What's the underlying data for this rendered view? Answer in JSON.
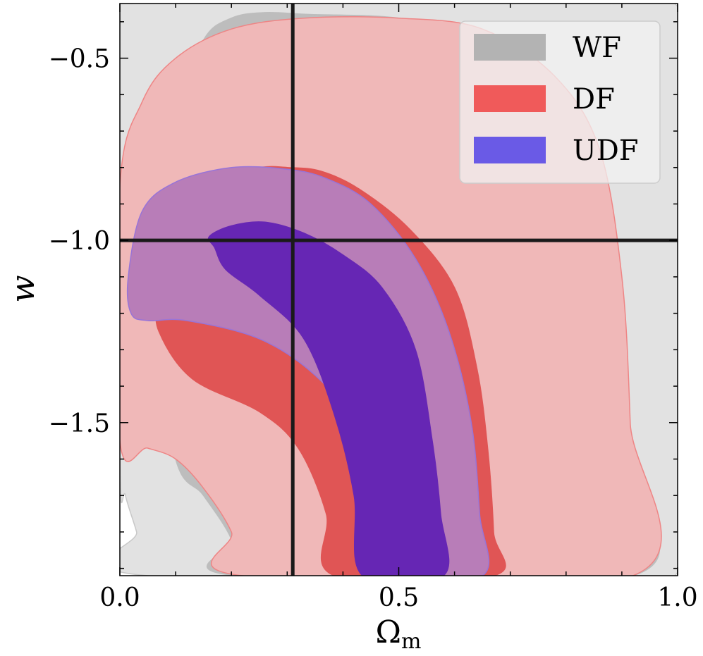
{
  "chart_data": {
    "type": "contour",
    "xlabel": "Ω",
    "xlabel_sub": "m",
    "ylabel": "w",
    "xlim": [
      0.0,
      1.0
    ],
    "ylim": [
      -1.92,
      -0.35
    ],
    "x_ticks": [
      0.0,
      0.5,
      1.0
    ],
    "x_tick_labels": [
      "0.0",
      "0.5",
      "1.0"
    ],
    "y_ticks": [
      -0.5,
      -1.0,
      -1.5
    ],
    "y_tick_labels": [
      "−0.5",
      "−1.0",
      "−1.5"
    ],
    "x_minor_step": 0.1,
    "y_minor_step": 0.1,
    "fiducial": {
      "x": 0.31,
      "y": -1.0
    },
    "legend": {
      "position": "top-right",
      "entries": [
        {
          "label": "WF",
          "color": "#b3b3b3"
        },
        {
          "label": "DF",
          "color": "#f05a5a"
        },
        {
          "label": "UDF",
          "color": "#6a5ae6"
        }
      ]
    },
    "series": [
      {
        "name": "WF",
        "levels": [
          {
            "level": "95%",
            "fill": "#e2e2e2",
            "stroke": "#c8c8c8",
            "points": [
              [
                0.02,
                -0.35
              ],
              [
                0.0,
                -0.4
              ],
              [
                0.0,
                -1.6
              ],
              [
                0.01,
                -1.7
              ],
              [
                0.03,
                -1.8
              ],
              [
                0.05,
                -1.92
              ],
              [
                0.995,
                -1.92
              ],
              [
                0.995,
                -0.35
              ]
            ]
          },
          {
            "level": "68%",
            "fill": "#bdbdbd",
            "stroke": "#bdbdbd",
            "points": [
              [
                0.21,
                -1.92
              ],
              [
                0.2,
                -1.82
              ],
              [
                0.15,
                -1.7
              ],
              [
                0.1,
                -1.6
              ],
              [
                0.06,
                -1.2
              ],
              [
                0.07,
                -0.95
              ],
              [
                0.1,
                -0.65
              ],
              [
                0.15,
                -0.45
              ],
              [
                0.2,
                -0.39
              ],
              [
                0.26,
                -0.375
              ],
              [
                0.34,
                -0.38
              ],
              [
                0.5,
                -0.39
              ],
              [
                0.65,
                -0.44
              ],
              [
                0.72,
                -0.5
              ],
              [
                0.76,
                -0.58
              ],
              [
                0.77,
                -0.64
              ],
              [
                0.8,
                -0.63
              ],
              [
                0.82,
                -0.7
              ],
              [
                0.86,
                -0.95
              ],
              [
                0.88,
                -1.3
              ],
              [
                0.9,
                -1.6
              ],
              [
                0.92,
                -1.92
              ]
            ]
          }
        ]
      },
      {
        "name": "DF",
        "levels": [
          {
            "level": "95%",
            "fill": "#f0b8b8",
            "stroke": "#ee8585",
            "points": [
              [
                0.0,
                -0.85
              ],
              [
                0.0,
                -1.55
              ],
              [
                0.05,
                -1.57
              ],
              [
                0.1,
                -1.6
              ],
              [
                0.15,
                -1.68
              ],
              [
                0.2,
                -1.8
              ],
              [
                0.22,
                -1.92
              ],
              [
                0.92,
                -1.92
              ],
              [
                0.915,
                -1.5
              ],
              [
                0.9,
                -1.1
              ],
              [
                0.86,
                -0.75
              ],
              [
                0.78,
                -0.55
              ],
              [
                0.65,
                -0.42
              ],
              [
                0.5,
                -0.39
              ],
              [
                0.33,
                -0.39
              ],
              [
                0.2,
                -0.42
              ],
              [
                0.1,
                -0.5
              ],
              [
                0.04,
                -0.62
              ]
            ]
          },
          {
            "level": "68%",
            "fill": "#e05555",
            "stroke": "#e05555",
            "points": [
              [
                0.065,
                -1.15
              ],
              [
                0.05,
                -1.05
              ],
              [
                0.07,
                -0.92
              ],
              [
                0.15,
                -0.83
              ],
              [
                0.25,
                -0.8
              ],
              [
                0.3,
                -0.8
              ],
              [
                0.36,
                -0.81
              ],
              [
                0.43,
                -0.86
              ],
              [
                0.52,
                -0.97
              ],
              [
                0.6,
                -1.13
              ],
              [
                0.64,
                -1.35
              ],
              [
                0.66,
                -1.58
              ],
              [
                0.67,
                -1.8
              ],
              [
                0.67,
                -1.92
              ],
              [
                0.385,
                -1.92
              ],
              [
                0.37,
                -1.75
              ],
              [
                0.32,
                -1.57
              ],
              [
                0.25,
                -1.47
              ],
              [
                0.13,
                -1.38
              ],
              [
                0.07,
                -1.25
              ]
            ]
          }
        ]
      },
      {
        "name": "UDF",
        "levels": [
          {
            "level": "95%",
            "fill": "#b87db8",
            "stroke": "#9874d8",
            "points": [
              [
                0.02,
                -1.2
              ],
              [
                0.015,
                -1.1
              ],
              [
                0.04,
                -0.92
              ],
              [
                0.1,
                -0.84
              ],
              [
                0.2,
                -0.8
              ],
              [
                0.3,
                -0.805
              ],
              [
                0.37,
                -0.83
              ],
              [
                0.45,
                -0.9
              ],
              [
                0.53,
                -1.05
              ],
              [
                0.59,
                -1.25
              ],
              [
                0.63,
                -1.5
              ],
              [
                0.645,
                -1.75
              ],
              [
                0.65,
                -1.92
              ],
              [
                0.48,
                -1.92
              ],
              [
                0.46,
                -1.7
              ],
              [
                0.43,
                -1.52
              ],
              [
                0.35,
                -1.37
              ],
              [
                0.25,
                -1.27
              ],
              [
                0.12,
                -1.22
              ],
              [
                0.05,
                -1.22
              ]
            ]
          },
          {
            "level": "68%",
            "fill": "#6626b4",
            "stroke": "#6626b4",
            "points": [
              [
                0.17,
                -1.02
              ],
              [
                0.16,
                -0.99
              ],
              [
                0.2,
                -0.96
              ],
              [
                0.26,
                -0.95
              ],
              [
                0.33,
                -0.98
              ],
              [
                0.4,
                -1.04
              ],
              [
                0.47,
                -1.13
              ],
              [
                0.53,
                -1.3
              ],
              [
                0.56,
                -1.55
              ],
              [
                0.575,
                -1.75
              ],
              [
                0.58,
                -1.92
              ],
              [
                0.435,
                -1.92
              ],
              [
                0.42,
                -1.7
              ],
              [
                0.385,
                -1.48
              ],
              [
                0.33,
                -1.27
              ],
              [
                0.25,
                -1.15
              ],
              [
                0.19,
                -1.08
              ]
            ]
          }
        ]
      }
    ]
  }
}
